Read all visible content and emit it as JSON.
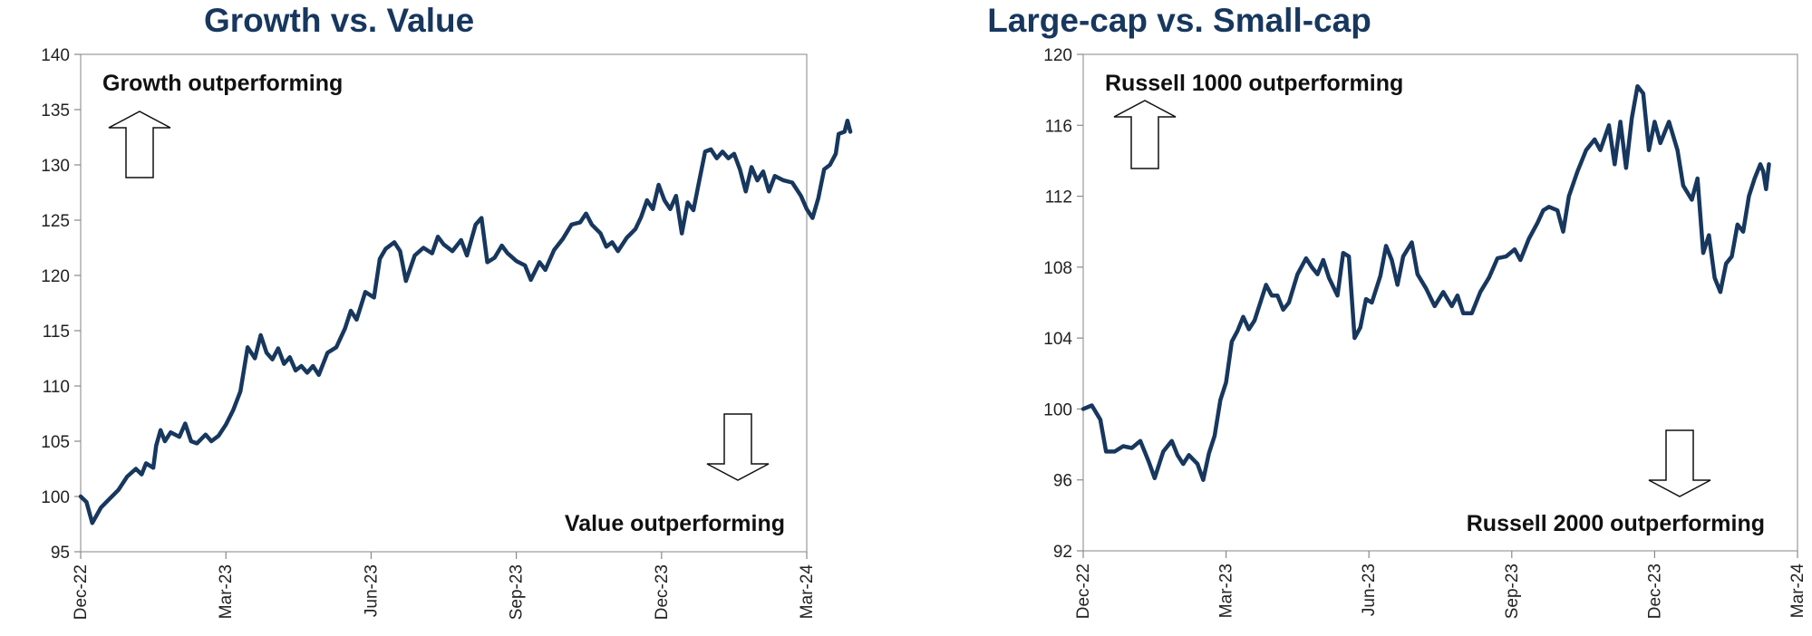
{
  "chart_data": [
    {
      "type": "line",
      "title": "Growth vs. Value",
      "xlabel": "",
      "ylabel": "",
      "ylim": [
        95,
        140
      ],
      "yticks": [
        95,
        100,
        105,
        110,
        115,
        120,
        125,
        130,
        135,
        140
      ],
      "xtick_labels": [
        "Dec-22",
        "Mar-23",
        "Jun-23",
        "Sep-23",
        "Dec-23",
        "Mar-24"
      ],
      "grid": false,
      "annotations": {
        "top": "Growth outperforming",
        "bottom": "Value outperforming"
      },
      "series": [
        {
          "color": "#17375e",
          "points": [
            [
              0.0,
              100.0
            ],
            [
              0.04,
              99.5
            ],
            [
              0.08,
              97.6
            ],
            [
              0.14,
              99.0
            ],
            [
              0.2,
              99.8
            ],
            [
              0.26,
              100.6
            ],
            [
              0.32,
              101.8
            ],
            [
              0.38,
              102.5
            ],
            [
              0.42,
              102.0
            ],
            [
              0.45,
              103.0
            ],
            [
              0.5,
              102.6
            ],
            [
              0.52,
              104.6
            ],
            [
              0.55,
              106.0
            ],
            [
              0.58,
              105.0
            ],
            [
              0.62,
              105.8
            ],
            [
              0.68,
              105.4
            ],
            [
              0.72,
              106.6
            ],
            [
              0.76,
              105.0
            ],
            [
              0.8,
              104.8
            ],
            [
              0.86,
              105.6
            ],
            [
              0.9,
              105.0
            ],
            [
              0.95,
              105.5
            ],
            [
              1.0,
              106.5
            ],
            [
              1.05,
              107.8
            ],
            [
              1.1,
              109.5
            ],
            [
              1.15,
              113.5
            ],
            [
              1.2,
              112.5
            ],
            [
              1.24,
              114.6
            ],
            [
              1.28,
              113.0
            ],
            [
              1.32,
              112.4
            ],
            [
              1.36,
              113.4
            ],
            [
              1.4,
              112.0
            ],
            [
              1.44,
              112.6
            ],
            [
              1.48,
              111.4
            ],
            [
              1.52,
              111.8
            ],
            [
              1.56,
              111.2
            ],
            [
              1.6,
              111.8
            ],
            [
              1.64,
              111.0
            ],
            [
              1.7,
              113.0
            ],
            [
              1.76,
              113.5
            ],
            [
              1.82,
              115.2
            ],
            [
              1.86,
              116.8
            ],
            [
              1.9,
              116.0
            ],
            [
              1.96,
              118.5
            ],
            [
              2.02,
              118.0
            ],
            [
              2.06,
              121.5
            ],
            [
              2.1,
              122.4
            ],
            [
              2.16,
              123.0
            ],
            [
              2.2,
              122.2
            ],
            [
              2.24,
              119.5
            ],
            [
              2.3,
              121.8
            ],
            [
              2.36,
              122.5
            ],
            [
              2.42,
              122.0
            ],
            [
              2.46,
              123.5
            ],
            [
              2.5,
              122.8
            ],
            [
              2.56,
              122.2
            ],
            [
              2.62,
              123.2
            ],
            [
              2.66,
              121.8
            ],
            [
              2.72,
              124.6
            ],
            [
              2.76,
              125.2
            ],
            [
              2.8,
              121.2
            ],
            [
              2.85,
              121.6
            ],
            [
              2.9,
              122.7
            ],
            [
              2.94,
              122.0
            ],
            [
              3.0,
              121.3
            ],
            [
              3.06,
              120.9
            ],
            [
              3.1,
              119.6
            ],
            [
              3.16,
              121.2
            ],
            [
              3.2,
              120.5
            ],
            [
              3.26,
              122.3
            ],
            [
              3.32,
              123.3
            ],
            [
              3.38,
              124.6
            ],
            [
              3.44,
              124.8
            ],
            [
              3.48,
              125.6
            ],
            [
              3.52,
              124.6
            ],
            [
              3.58,
              123.8
            ],
            [
              3.62,
              122.6
            ],
            [
              3.66,
              123.0
            ],
            [
              3.7,
              122.2
            ],
            [
              3.76,
              123.4
            ],
            [
              3.82,
              124.2
            ],
            [
              3.86,
              125.3
            ],
            [
              3.9,
              126.8
            ],
            [
              3.94,
              126.0
            ],
            [
              3.98,
              128.2
            ],
            [
              4.02,
              126.8
            ],
            [
              4.06,
              126.0
            ],
            [
              4.1,
              127.2
            ],
            [
              4.14,
              123.8
            ],
            [
              4.18,
              126.6
            ],
            [
              4.22,
              125.9
            ],
            [
              4.26,
              128.6
            ],
            [
              4.3,
              131.2
            ],
            [
              4.34,
              131.4
            ],
            [
              4.38,
              130.6
            ],
            [
              4.42,
              131.2
            ],
            [
              4.46,
              130.6
            ],
            [
              4.5,
              131.0
            ],
            [
              4.54,
              129.6
            ],
            [
              4.58,
              127.6
            ],
            [
              4.62,
              129.8
            ],
            [
              4.66,
              128.6
            ],
            [
              4.7,
              129.4
            ],
            [
              4.74,
              127.6
            ],
            [
              4.78,
              129.0
            ],
            [
              4.84,
              128.6
            ],
            [
              4.9,
              128.4
            ],
            [
              4.96,
              127.2
            ],
            [
              5.0,
              126.0
            ],
            [
              5.04,
              125.2
            ],
            [
              5.08,
              127.0
            ],
            [
              5.12,
              129.6
            ],
            [
              5.16,
              130.0
            ],
            [
              5.2,
              131.0
            ],
            [
              5.22,
              132.8
            ],
            [
              5.26,
              133.0
            ],
            [
              5.28,
              134.0
            ],
            [
              5.3,
              133.0
            ]
          ]
        }
      ]
    },
    {
      "type": "line",
      "title": "Large-cap vs. Small-cap",
      "xlabel": "",
      "ylabel": "",
      "ylim": [
        92,
        120
      ],
      "yticks": [
        92,
        96,
        100,
        104,
        108,
        112,
        116,
        120
      ],
      "xtick_labels": [
        "Dec-22",
        "Mar-23",
        "Jun-23",
        "Sep-23",
        "Dec-23",
        "Mar-24"
      ],
      "grid": false,
      "annotations": {
        "top": "Russell 1000 outperforming",
        "bottom": "Russell 2000 outperforming"
      },
      "series": [
        {
          "color": "#17375e",
          "points": [
            [
              0.0,
              100.0
            ],
            [
              0.06,
              100.2
            ],
            [
              0.12,
              99.4
            ],
            [
              0.16,
              97.6
            ],
            [
              0.22,
              97.6
            ],
            [
              0.28,
              97.9
            ],
            [
              0.34,
              97.8
            ],
            [
              0.4,
              98.2
            ],
            [
              0.46,
              97.0
            ],
            [
              0.5,
              96.1
            ],
            [
              0.56,
              97.6
            ],
            [
              0.62,
              98.2
            ],
            [
              0.66,
              97.4
            ],
            [
              0.7,
              96.9
            ],
            [
              0.74,
              97.4
            ],
            [
              0.8,
              96.9
            ],
            [
              0.84,
              96.0
            ],
            [
              0.88,
              97.5
            ],
            [
              0.92,
              98.5
            ],
            [
              0.96,
              100.5
            ],
            [
              1.0,
              101.5
            ],
            [
              1.04,
              103.8
            ],
            [
              1.08,
              104.4
            ],
            [
              1.12,
              105.2
            ],
            [
              1.16,
              104.5
            ],
            [
              1.2,
              105.0
            ],
            [
              1.24,
              106.0
            ],
            [
              1.28,
              107.0
            ],
            [
              1.32,
              106.4
            ],
            [
              1.36,
              106.4
            ],
            [
              1.4,
              105.6
            ],
            [
              1.44,
              106.0
            ],
            [
              1.5,
              107.6
            ],
            [
              1.56,
              108.5
            ],
            [
              1.6,
              108.0
            ],
            [
              1.64,
              107.6
            ],
            [
              1.68,
              108.4
            ],
            [
              1.72,
              107.4
            ],
            [
              1.78,
              106.4
            ],
            [
              1.82,
              108.8
            ],
            [
              1.86,
              108.6
            ],
            [
              1.9,
              104.0
            ],
            [
              1.94,
              104.6
            ],
            [
              1.98,
              106.2
            ],
            [
              2.02,
              106.0
            ],
            [
              2.08,
              107.5
            ],
            [
              2.12,
              109.2
            ],
            [
              2.16,
              108.4
            ],
            [
              2.2,
              107.0
            ],
            [
              2.24,
              108.6
            ],
            [
              2.3,
              109.4
            ],
            [
              2.34,
              107.6
            ],
            [
              2.4,
              106.8
            ],
            [
              2.46,
              105.8
            ],
            [
              2.52,
              106.6
            ],
            [
              2.58,
              105.8
            ],
            [
              2.62,
              106.4
            ],
            [
              2.66,
              105.4
            ],
            [
              2.72,
              105.4
            ],
            [
              2.78,
              106.6
            ],
            [
              2.84,
              107.4
            ],
            [
              2.9,
              108.5
            ],
            [
              2.96,
              108.6
            ],
            [
              3.02,
              109.0
            ],
            [
              3.06,
              108.4
            ],
            [
              3.12,
              109.6
            ],
            [
              3.18,
              110.5
            ],
            [
              3.22,
              111.2
            ],
            [
              3.26,
              111.4
            ],
            [
              3.32,
              111.2
            ],
            [
              3.36,
              110.0
            ],
            [
              3.4,
              112.0
            ],
            [
              3.46,
              113.4
            ],
            [
              3.52,
              114.6
            ],
            [
              3.58,
              115.2
            ],
            [
              3.62,
              114.6
            ],
            [
              3.68,
              116.0
            ],
            [
              3.72,
              113.8
            ],
            [
              3.76,
              116.2
            ],
            [
              3.8,
              113.6
            ],
            [
              3.84,
              116.4
            ],
            [
              3.88,
              118.2
            ],
            [
              3.92,
              117.8
            ],
            [
              3.96,
              114.6
            ],
            [
              4.0,
              116.2
            ],
            [
              4.04,
              115.0
            ],
            [
              4.1,
              116.2
            ],
            [
              4.16,
              114.6
            ],
            [
              4.2,
              112.6
            ],
            [
              4.26,
              111.8
            ],
            [
              4.3,
              113.0
            ],
            [
              4.34,
              108.8
            ],
            [
              4.38,
              109.8
            ],
            [
              4.42,
              107.4
            ],
            [
              4.46,
              106.6
            ],
            [
              4.5,
              108.2
            ],
            [
              4.54,
              108.6
            ],
            [
              4.58,
              110.4
            ],
            [
              4.62,
              110.0
            ],
            [
              4.66,
              112.0
            ],
            [
              4.7,
              113.0
            ],
            [
              4.74,
              113.8
            ],
            [
              4.76,
              113.4
            ],
            [
              4.78,
              112.4
            ],
            [
              4.8,
              113.8
            ]
          ]
        }
      ]
    }
  ]
}
